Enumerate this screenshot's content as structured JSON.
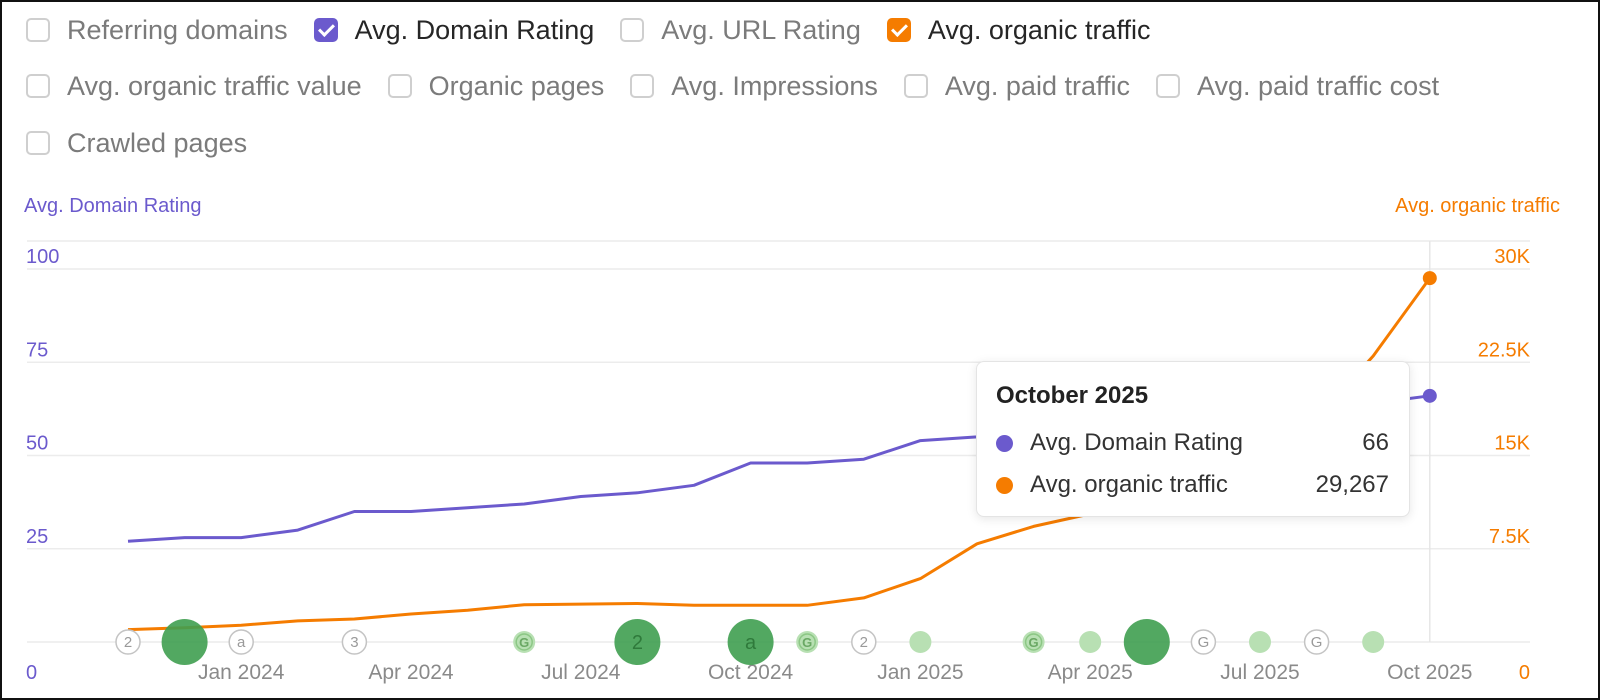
{
  "metrics": [
    {
      "label": "Referring domains",
      "checked": false
    },
    {
      "label": "Avg. Domain Rating",
      "checked": true,
      "color": "#6b5acd"
    },
    {
      "label": "Avg. URL Rating",
      "checked": false
    },
    {
      "label": "Avg. organic traffic",
      "checked": true,
      "color": "#f57c00"
    },
    {
      "label": "Avg. organic traffic value",
      "checked": false
    },
    {
      "label": "Organic pages",
      "checked": false
    },
    {
      "label": "Avg. Impressions",
      "checked": false
    },
    {
      "label": "Avg. paid traffic",
      "checked": false
    },
    {
      "label": "Avg. paid traffic cost",
      "checked": false
    },
    {
      "label": "Crawled pages",
      "checked": false
    }
  ],
  "colors": {
    "dr": "#6b5acd",
    "traffic": "#f57c00",
    "grid": "#ececec",
    "event_green": "#3f9f50",
    "event_light": "#b8e0b3"
  },
  "chart_data": {
    "type": "line",
    "left_axis": {
      "title": "Avg. Domain Rating",
      "ticks": [
        "0",
        "25",
        "50",
        "75",
        "100"
      ],
      "range": [
        0,
        100
      ]
    },
    "right_axis": {
      "title": "Avg. organic traffic",
      "ticks": [
        "0",
        "7.5K",
        "15K",
        "22.5K",
        "30K"
      ],
      "range": [
        0,
        30000
      ]
    },
    "x_ticks": [
      "Jan 2024",
      "Apr 2024",
      "Jul 2024",
      "Oct 2024",
      "Jan 2025",
      "Apr 2025",
      "Jul 2025",
      "Oct 2025"
    ],
    "x_tick_index": [
      2,
      5,
      8,
      11,
      14,
      17,
      20,
      23
    ],
    "months": [
      "Nov 2023",
      "Dec 2023",
      "Jan 2024",
      "Feb 2024",
      "Mar 2024",
      "Apr 2024",
      "May 2024",
      "Jun 2024",
      "Jul 2024",
      "Aug 2024",
      "Sep 2024",
      "Oct 2024",
      "Nov 2024",
      "Dec 2024",
      "Jan 2025",
      "Feb 2025",
      "Mar 2025",
      "Apr 2025",
      "May 2025",
      "Jun 2025",
      "Jul 2025",
      "Aug 2025",
      "Sep 2025",
      "Oct 2025"
    ],
    "series": [
      {
        "name": "Avg. Domain Rating",
        "axis": "left",
        "color": "#6b5acd",
        "values": [
          27,
          28,
          28,
          30,
          35,
          35,
          36,
          37,
          39,
          40,
          42,
          48,
          48,
          49,
          54,
          55,
          57,
          59,
          60,
          61,
          62,
          63,
          64,
          66
        ]
      },
      {
        "name": "Avg. organic traffic",
        "axis": "right",
        "color": "#f57c00",
        "values": [
          1000,
          1150,
          1350,
          1700,
          1850,
          2250,
          2550,
          3000,
          3050,
          3100,
          2950,
          2950,
          2950,
          3550,
          5100,
          7900,
          9300,
          10300,
          11000,
          13000,
          15800,
          18000,
          23000,
          29267
        ]
      }
    ],
    "events": [
      {
        "i": 0,
        "kind": "outline",
        "glyph": "2"
      },
      {
        "i": 1,
        "kind": "big",
        "glyph": ""
      },
      {
        "i": 2,
        "kind": "outline",
        "glyph": "a"
      },
      {
        "i": 4,
        "kind": "outline",
        "glyph": "3"
      },
      {
        "i": 7,
        "kind": "light",
        "glyph": "G"
      },
      {
        "i": 9,
        "kind": "big",
        "glyph": "2"
      },
      {
        "i": 11,
        "kind": "big",
        "glyph": "a"
      },
      {
        "i": 12,
        "kind": "light",
        "glyph": "G"
      },
      {
        "i": 13,
        "kind": "outline",
        "glyph": "2"
      },
      {
        "i": 14,
        "kind": "light",
        "glyph": ""
      },
      {
        "i": 16,
        "kind": "light",
        "glyph": "G"
      },
      {
        "i": 17,
        "kind": "light",
        "glyph": ""
      },
      {
        "i": 18,
        "kind": "big",
        "glyph": ""
      },
      {
        "i": 19,
        "kind": "outline",
        "glyph": "G"
      },
      {
        "i": 20,
        "kind": "light",
        "glyph": ""
      },
      {
        "i": 21,
        "kind": "outline",
        "glyph": "G"
      },
      {
        "i": 22,
        "kind": "light",
        "glyph": ""
      }
    ],
    "grid": true
  },
  "tooltip": {
    "title": "October 2025",
    "rows": [
      {
        "label": "Avg. Domain Rating",
        "value": "66",
        "color": "#6b5acd"
      },
      {
        "label": "Avg. organic traffic",
        "value": "29,267",
        "color": "#f57c00"
      }
    ]
  }
}
